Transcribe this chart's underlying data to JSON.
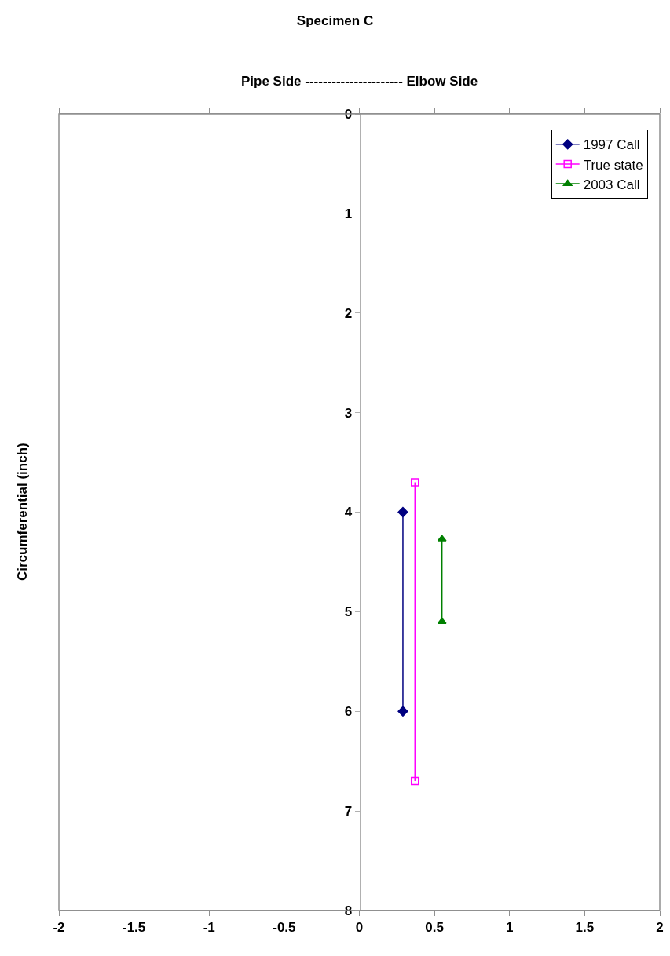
{
  "chart_data": {
    "type": "line",
    "title": "Specimen C",
    "xlabel": "Pipe Side ---------------------- Elbow Side",
    "ylabel": "Circumferential (inch)",
    "xlim": [
      -2,
      2
    ],
    "xticks": [
      -2,
      -1.5,
      -1,
      -0.5,
      0,
      0.5,
      1,
      1.5,
      2
    ],
    "ylim": [
      8,
      0
    ],
    "yticks": [
      0,
      1,
      2,
      3,
      4,
      5,
      6,
      7,
      8
    ],
    "legend": "top right",
    "series": [
      {
        "name": "1997 Call",
        "color": "#000080",
        "marker": "diamond",
        "x": [
          0.29,
          0.29
        ],
        "values": [
          4,
          6
        ]
      },
      {
        "name": "True state",
        "color": "#ff00ff",
        "marker": "square-open",
        "x": [
          0.37,
          0.37
        ],
        "values": [
          3.7,
          6.7
        ]
      },
      {
        "name": "2003 Call",
        "color": "#008000",
        "marker": "triangle",
        "x": [
          0.55,
          0.55
        ],
        "values": [
          4.27,
          5.1
        ]
      }
    ]
  }
}
